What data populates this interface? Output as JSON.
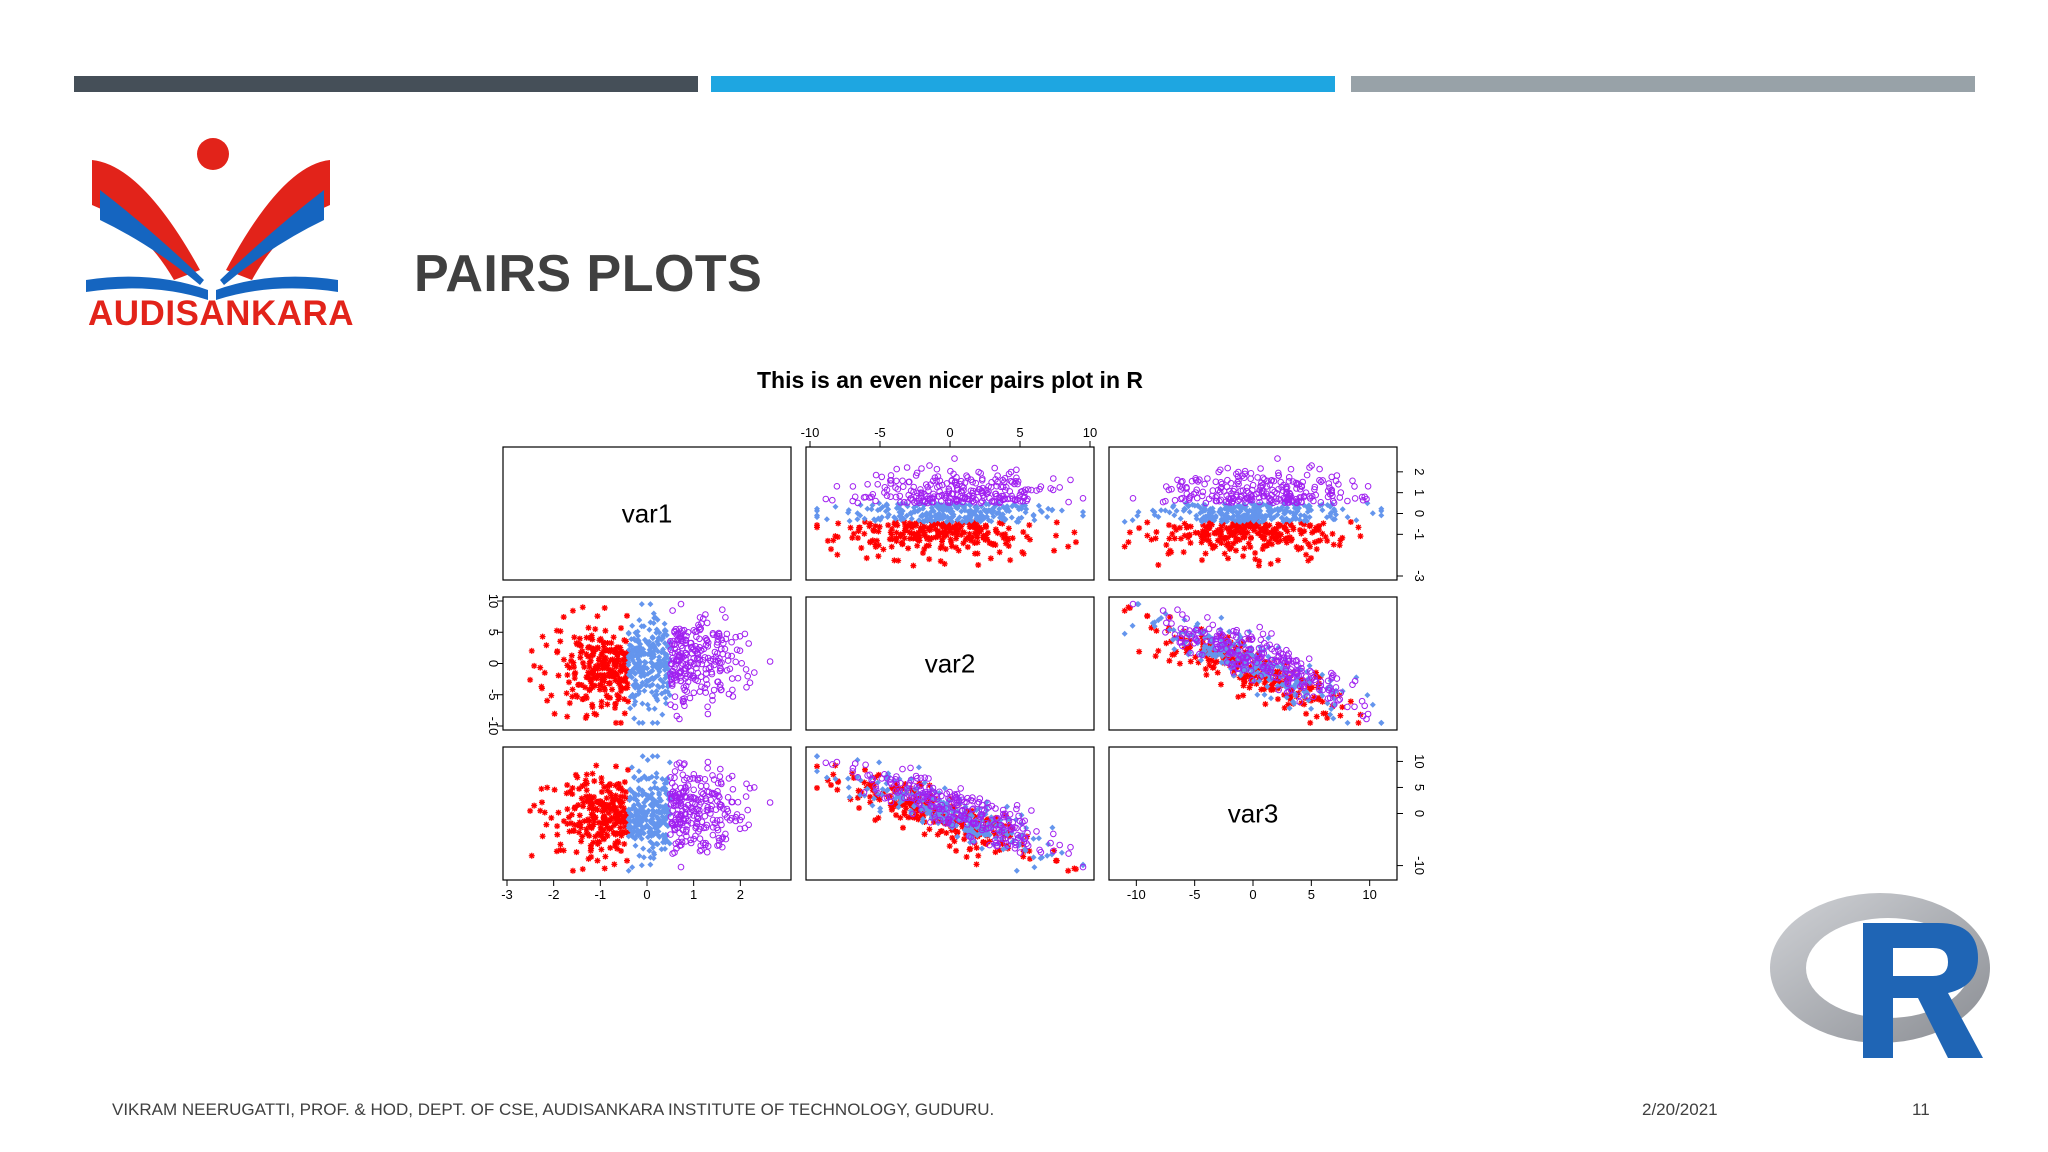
{
  "slide": {
    "title": "PAIRS PLOTS",
    "logo_text": "AUDISANKARA",
    "footer_text": "VIKRAM NEERUGATTI, PROF. & HOD, DEPT. OF CSE, AUDISANKARA INSTITUTE OF TECHNOLOGY, GUDURU.",
    "date": "2/20/2021",
    "page_number": "11",
    "colors": {
      "bar1": "#454f58",
      "bar2": "#1ea6e1",
      "bar3": "#98a2a8",
      "title": "#404040",
      "brand_red": "#e2231a",
      "brand_blue": "#1565c0"
    }
  },
  "chart_data": {
    "type": "scatter",
    "title": "This is an even nicer pairs plot in R",
    "variables": [
      "var1",
      "var2",
      "var3"
    ],
    "ranges": {
      "var1": [
        -3,
        3
      ],
      "var2": [
        -10,
        10
      ],
      "var3": [
        -12,
        12
      ]
    },
    "ticks": {
      "var1": [
        -3,
        -2,
        -1,
        0,
        1,
        2
      ],
      "var2": [
        -10,
        -5,
        0,
        5,
        10
      ],
      "var3": [
        -10,
        5,
        0,
        5,
        10
      ]
    },
    "var1_ticks_right": [
      -3,
      -1,
      0,
      1,
      2
    ],
    "var3_ticks_right": [
      -10,
      0,
      5,
      10
    ],
    "groups": [
      {
        "color": "#ff0000",
        "marker": "asterisk",
        "var1_range": [
          -3,
          -0.4
        ]
      },
      {
        "color": "#6495ed",
        "marker": "diamond",
        "var1_range": [
          -0.4,
          0.5
        ]
      },
      {
        "color": "#a020f0",
        "marker": "circle",
        "var1_range": [
          0.5,
          2.8
        ]
      }
    ],
    "n_points_per_group": 250,
    "grid": false,
    "legend": "none"
  }
}
